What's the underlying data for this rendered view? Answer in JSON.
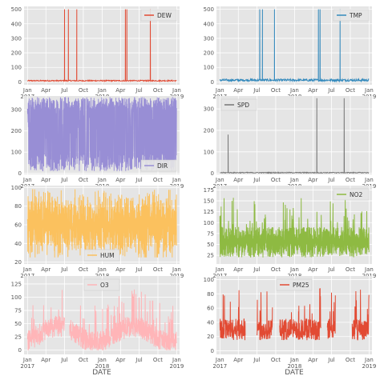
{
  "chart_data": [
    {
      "type": "line",
      "legend": "DEW",
      "legend_position": "upper-right",
      "color": "#e24a33",
      "ylim": [
        -20,
        520
      ],
      "yticks": [
        0,
        100,
        200,
        300,
        400,
        500
      ],
      "x_range": [
        "2016-12-15",
        "2019-01-15"
      ],
      "x_tick_labels": [
        "Jan\n2017",
        "Apr",
        "Jul",
        "Oct",
        "Jan\n2018",
        "Apr",
        "Jul",
        "Oct",
        "Jan\n2019"
      ],
      "baseline": 8,
      "amplitude": 4,
      "spikes": [
        [
          "2017-07-01",
          500
        ],
        [
          "2017-07-20",
          500
        ],
        [
          "2017-08-30",
          500
        ],
        [
          "2018-04-25",
          500
        ],
        [
          "2018-05-02",
          500
        ],
        [
          "2018-08-25",
          500
        ]
      ]
    },
    {
      "type": "line",
      "legend": "TMP",
      "legend_position": "upper-right",
      "color": "#348abd",
      "ylim": [
        -20,
        520
      ],
      "yticks": [
        0,
        100,
        200,
        300,
        400,
        500
      ],
      "x_range": [
        "2016-12-15",
        "2019-01-15"
      ],
      "x_tick_labels": [
        "Jan\n2017",
        "Apr",
        "Jul",
        "Oct",
        "Jan\n2018",
        "Apr",
        "Jul",
        "Oct",
        "Jan\n2019"
      ],
      "baseline": 12,
      "amplitude": 8,
      "spikes": [
        [
          "2017-07-15",
          500
        ],
        [
          "2017-07-28",
          500
        ],
        [
          "2017-09-25",
          500
        ],
        [
          "2018-04-28",
          500
        ],
        [
          "2018-05-06",
          500
        ],
        [
          "2018-08-12",
          500
        ]
      ]
    },
    {
      "type": "line",
      "legend": "DIR",
      "legend_position": "lower-right",
      "color": "#988ed5",
      "ylim": [
        -5,
        365
      ],
      "yticks": [
        0,
        100,
        200,
        300
      ],
      "x_range": [
        "2016-12-15",
        "2019-01-15"
      ],
      "x_tick_labels": [
        "Jan\n2017",
        "Apr",
        "Jul",
        "Oct",
        "Jan\n2018",
        "Apr",
        "Jul",
        "Oct",
        "Jan\n2019"
      ],
      "data_range": [
        "2017-01-01",
        "2018-12-31"
      ],
      "min": 10,
      "max": 360
    },
    {
      "type": "line",
      "legend": "SPD",
      "legend_position": "upper-left",
      "color": "#777777",
      "ylim": [
        -5,
        360
      ],
      "yticks": [
        0,
        100,
        200,
        300
      ],
      "x_range": [
        "2016-12-15",
        "2019-01-15"
      ],
      "x_tick_labels": [
        "Jan\n2017",
        "Apr",
        "Jul",
        "Oct",
        "Jan\n2018",
        "Apr",
        "Jul",
        "Oct",
        "Jan\n2019"
      ],
      "baseline": 3,
      "amplitude": 2,
      "spikes": [
        [
          "2017-02-10",
          180
        ],
        [
          "2018-04-20",
          350
        ],
        [
          "2018-09-01",
          350
        ]
      ]
    },
    {
      "type": "line",
      "legend": "HUM",
      "legend_position": "lower-center",
      "color": "#fbc15e",
      "ylim": [
        18,
        102
      ],
      "yticks": [
        20,
        40,
        60,
        80,
        100
      ],
      "x_range": [
        "2016-12-15",
        "2019-01-15"
      ],
      "x_tick_labels": [
        "Jan\n2017",
        "Apr",
        "Jul",
        "Oct",
        "Jan\n2018",
        "Apr",
        "Jul",
        "Oct",
        "Jan\n2019"
      ],
      "data_range": [
        "2017-01-01",
        "2018-12-31"
      ],
      "min": 25,
      "max": 100
    },
    {
      "type": "line",
      "legend": "NO2",
      "legend_position": "upper-right",
      "color": "#8eba42",
      "ylim": [
        5,
        185
      ],
      "yticks": [
        25,
        50,
        75,
        100,
        125,
        150,
        175
      ],
      "x_range": [
        "2016-12-15",
        "2019-01-15"
      ],
      "x_tick_labels": [
        "Jan\n2017",
        "Apr",
        "Jul",
        "Oct",
        "Jan\n2018",
        "Apr",
        "Jul",
        "Oct",
        "Jan\n2019"
      ],
      "data_range": [
        "2017-01-01",
        "2018-12-31"
      ],
      "min": 15,
      "max": 180
    },
    {
      "type": "line",
      "legend": "O3",
      "legend_position": "upper-center",
      "color": "#ffb5b8",
      "ylim": [
        -8,
        140
      ],
      "yticks": [
        0,
        25,
        50,
        75,
        100,
        125
      ],
      "x_range": [
        "2016-12-15",
        "2019-01-15"
      ],
      "x_tick_labels": [
        "Jan\n2017",
        "Apr",
        "Jul",
        "Oct",
        "Jan\n2018",
        "Apr",
        "Jul",
        "Oct",
        "Jan\n2019"
      ],
      "data_range": [
        "2017-01-01",
        "2018-12-31"
      ],
      "min": 0,
      "max": 135,
      "gaps": [
        [
          "2017-07-01",
          "2017-07-25"
        ]
      ]
    },
    {
      "type": "line",
      "legend": "PM25",
      "legend_position": "upper-center",
      "color": "#e24a33",
      "ylim": [
        -5,
        105
      ],
      "yticks": [
        0,
        20,
        40,
        60,
        80,
        100
      ],
      "x_range": [
        "2016-12-15",
        "2019-01-15"
      ],
      "x_tick_labels": [
        "Jan\n2017",
        "Apr",
        "Jul",
        "Oct",
        "Jan\n2018",
        "Apr",
        "Jul",
        "Oct",
        "Jan\n2019"
      ],
      "data_range": [
        "2017-01-01",
        "2018-12-31"
      ],
      "min": 0,
      "max": 100,
      "gaps": [
        [
          "2017-05-05",
          "2017-07-01"
        ],
        [
          "2017-09-15",
          "2017-10-20"
        ],
        [
          "2018-05-10",
          "2018-06-10"
        ],
        [
          "2018-07-20",
          "2018-10-10"
        ]
      ]
    }
  ],
  "xlabel": "DATE"
}
